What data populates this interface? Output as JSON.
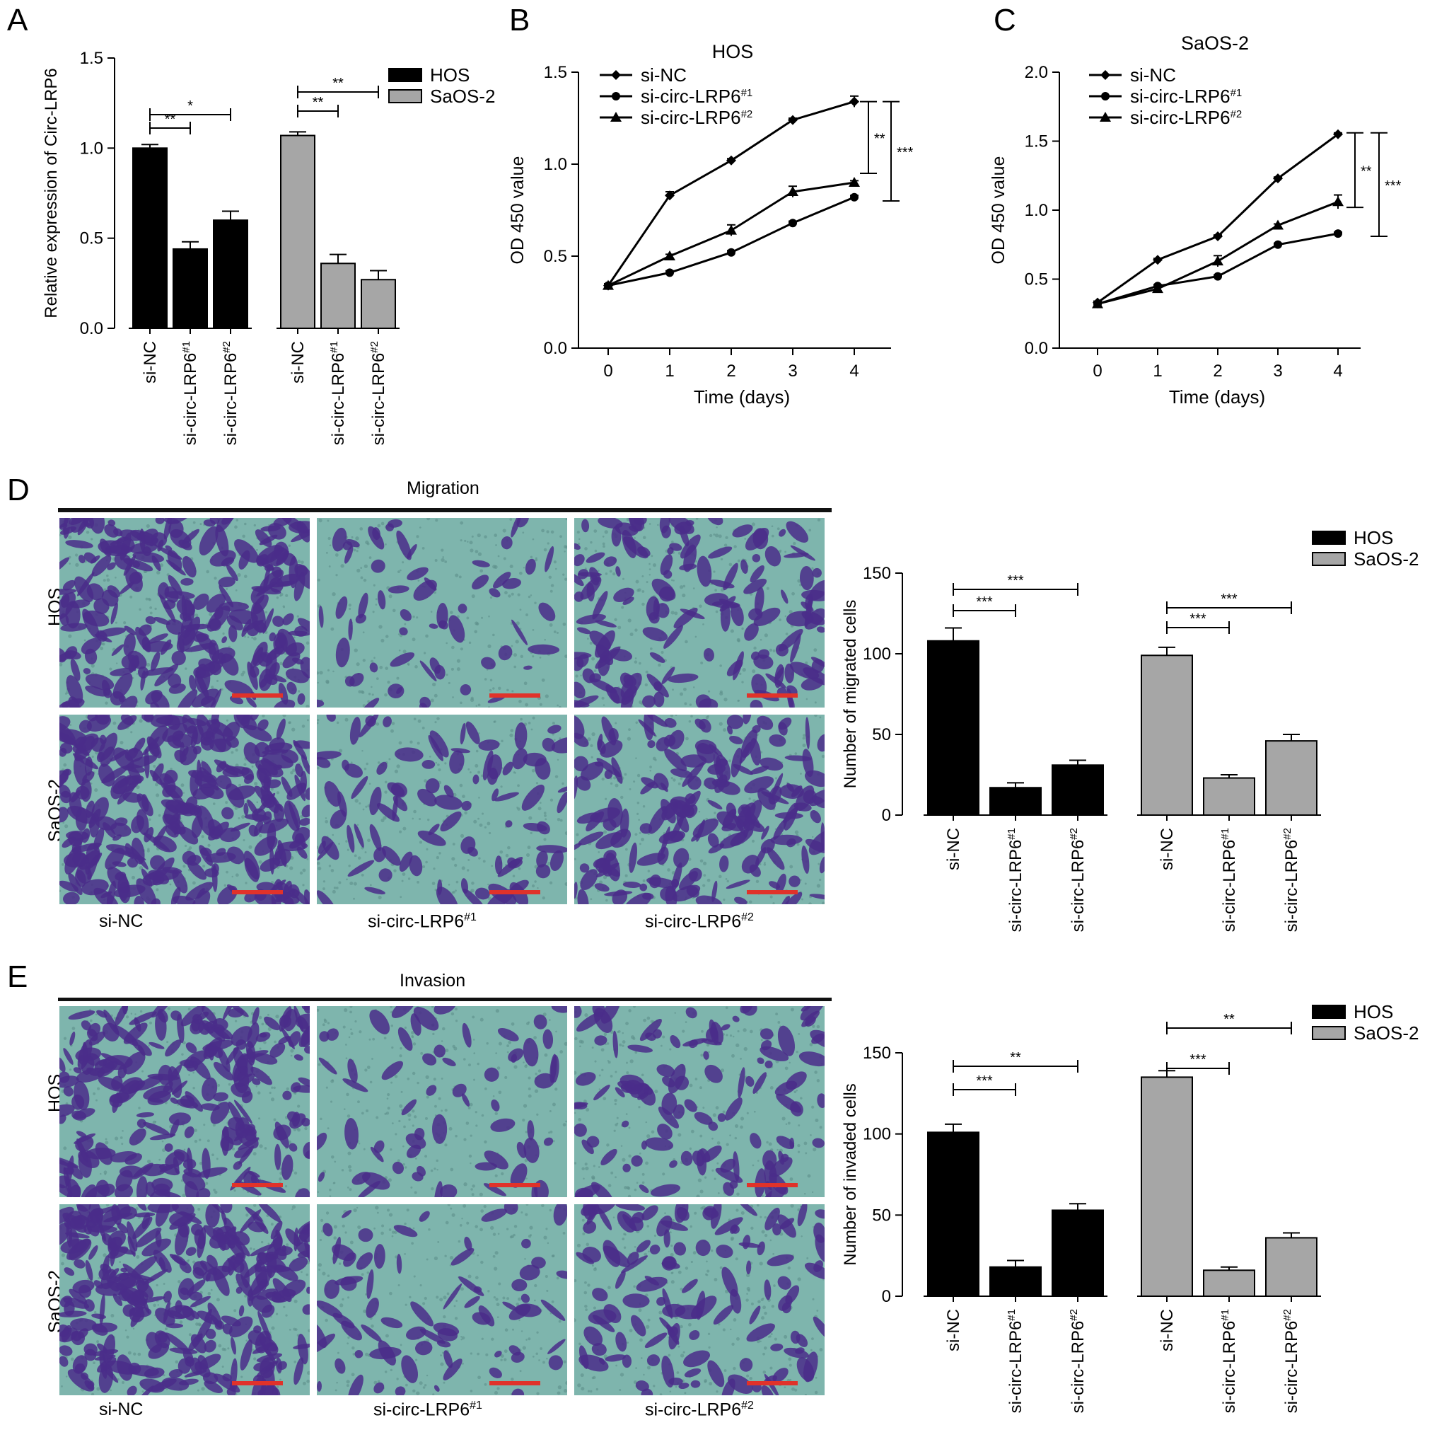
{
  "panels": {
    "A": "A",
    "B": "B",
    "C": "C",
    "D": "D",
    "E": "E"
  },
  "colors": {
    "hos": "#000000",
    "saos2": "#a6a6a6",
    "scale_bar": "#e0322a",
    "cell_stain": "#4a2d8a",
    "membrane_bg": "#7eb5ad"
  },
  "chart_data": [
    {
      "id": "A",
      "type": "bar",
      "ylabel": "Relative expression of Circ-LRP6",
      "ylim": [
        0,
        1.5
      ],
      "yticks": [
        "0.0",
        "0.5",
        "1.0",
        "1.5"
      ],
      "categories": [
        "si-NC",
        "si-circ-LRP6#1",
        "si-circ-LRP6#2"
      ],
      "category_base": "si-circ-LRP6",
      "series": [
        {
          "name": "HOS",
          "values": [
            1.0,
            0.44,
            0.6
          ],
          "errors": [
            0.02,
            0.04,
            0.05
          ]
        },
        {
          "name": "SaOS-2",
          "values": [
            1.07,
            0.36,
            0.27
          ],
          "errors": [
            0.02,
            0.05,
            0.05
          ]
        }
      ],
      "significance": [
        {
          "series": 0,
          "from": 0,
          "to": 1,
          "label": "**"
        },
        {
          "series": 0,
          "from": 0,
          "to": 2,
          "label": "*"
        },
        {
          "series": 1,
          "from": 0,
          "to": 1,
          "label": "**"
        },
        {
          "series": 1,
          "from": 0,
          "to": 2,
          "label": "**"
        }
      ],
      "legend": "top-right"
    },
    {
      "id": "B",
      "type": "line",
      "title": "HOS",
      "xlabel": "Time (days)",
      "ylabel": "OD 450 value",
      "x": [
        0,
        1,
        2,
        3,
        4
      ],
      "xticks": [
        "0",
        "1",
        "2",
        "3",
        "4"
      ],
      "ylim": [
        0,
        1.5
      ],
      "yticks": [
        "0.0",
        "0.5",
        "1.0",
        "1.5"
      ],
      "series": [
        {
          "name": "si-NC",
          "marker": "diamond",
          "values": [
            0.34,
            0.83,
            1.02,
            1.24,
            1.34
          ],
          "errors": [
            0.01,
            0.02,
            0.01,
            0.01,
            0.03
          ]
        },
        {
          "name": "si-circ-LRP6#1",
          "marker": "circle",
          "values": [
            0.34,
            0.41,
            0.52,
            0.68,
            0.82
          ],
          "errors": [
            0.01,
            0.01,
            0.01,
            0.01,
            0.01
          ]
        },
        {
          "name": "si-circ-LRP6#2",
          "marker": "triangle",
          "values": [
            0.34,
            0.5,
            0.64,
            0.85,
            0.9
          ],
          "errors": [
            0.01,
            0.01,
            0.03,
            0.03,
            0.01
          ]
        }
      ],
      "significance": [
        {
          "label": "**",
          "y1": 1.34,
          "y2": 0.95
        },
        {
          "label": "***",
          "y1": 1.34,
          "y2": 0.8
        }
      ],
      "legend": "top-left"
    },
    {
      "id": "C",
      "type": "line",
      "title": "SaOS-2",
      "xlabel": "Time (days)",
      "ylabel": "OD 450 value",
      "x": [
        0,
        1,
        2,
        3,
        4
      ],
      "xticks": [
        "0",
        "1",
        "2",
        "3",
        "4"
      ],
      "ylim": [
        0,
        2.0
      ],
      "yticks": [
        "0.0",
        "0.5",
        "1.0",
        "1.5",
        "2.0"
      ],
      "series": [
        {
          "name": "si-NC",
          "marker": "diamond",
          "values": [
            0.33,
            0.64,
            0.81,
            1.23,
            1.55
          ],
          "errors": [
            0.01,
            0.01,
            0.01,
            0.01,
            0.01
          ]
        },
        {
          "name": "si-circ-LRP6#1",
          "marker": "circle",
          "values": [
            0.32,
            0.45,
            0.52,
            0.75,
            0.83
          ],
          "errors": [
            0.01,
            0.01,
            0.01,
            0.01,
            0.01
          ]
        },
        {
          "name": "si-circ-LRP6#2",
          "marker": "triangle",
          "values": [
            0.32,
            0.43,
            0.63,
            0.89,
            1.06
          ],
          "errors": [
            0.02,
            0.02,
            0.04,
            0.01,
            0.05
          ]
        }
      ],
      "significance": [
        {
          "label": "**",
          "y1": 1.56,
          "y2": 1.02
        },
        {
          "label": "***",
          "y1": 1.56,
          "y2": 0.81
        }
      ],
      "legend": "top-left"
    },
    {
      "id": "D",
      "type": "bar",
      "ylabel": "Number of migrated cells",
      "ylim": [
        0,
        150
      ],
      "yticks": [
        "0",
        "50",
        "100",
        "150"
      ],
      "categories": [
        "si-NC",
        "si-circ-LRP6#1",
        "si-circ-LRP6#2"
      ],
      "category_base": "si-circ-LRP6",
      "series": [
        {
          "name": "HOS",
          "values": [
            108,
            17,
            31
          ],
          "errors": [
            8,
            3,
            3
          ]
        },
        {
          "name": "SaOS-2",
          "values": [
            99,
            23,
            46
          ],
          "errors": [
            5,
            2,
            4
          ]
        }
      ],
      "significance": [
        {
          "series": 0,
          "from": 0,
          "to": 1,
          "label": "***"
        },
        {
          "series": 0,
          "from": 0,
          "to": 2,
          "label": "***"
        },
        {
          "series": 1,
          "from": 0,
          "to": 1,
          "label": "***"
        },
        {
          "series": 1,
          "from": 0,
          "to": 2,
          "label": "***"
        }
      ],
      "legend": "top-right"
    },
    {
      "id": "E",
      "type": "bar",
      "ylabel": "Number of invaded cells",
      "ylim": [
        0,
        150
      ],
      "yticks": [
        "0",
        "50",
        "100",
        "150"
      ],
      "categories": [
        "si-NC",
        "si-circ-LRP6#1",
        "si-circ-LRP6#2"
      ],
      "category_base": "si-circ-LRP6",
      "series": [
        {
          "name": "HOS",
          "values": [
            101,
            18,
            53
          ],
          "errors": [
            5,
            4,
            4
          ]
        },
        {
          "name": "SaOS-2",
          "values": [
            135,
            16,
            36
          ],
          "errors": [
            4,
            2,
            3
          ]
        }
      ],
      "significance": [
        {
          "series": 0,
          "from": 0,
          "to": 1,
          "label": "***"
        },
        {
          "series": 0,
          "from": 0,
          "to": 2,
          "label": "**"
        },
        {
          "series": 1,
          "from": 0,
          "to": 1,
          "label": "***"
        },
        {
          "series": 1,
          "from": 0,
          "to": 2,
          "label": "**"
        }
      ],
      "legend": "top-right"
    }
  ],
  "micrographs": {
    "migration_title": "Migration",
    "invasion_title": "Invasion",
    "row_labels": [
      "HOS",
      "SaOS-2"
    ],
    "column_labels": [
      "si-NC",
      "si-circ-LRP6",
      "si-circ-LRP6"
    ],
    "column_sups": [
      "",
      "#1",
      "#2"
    ]
  }
}
